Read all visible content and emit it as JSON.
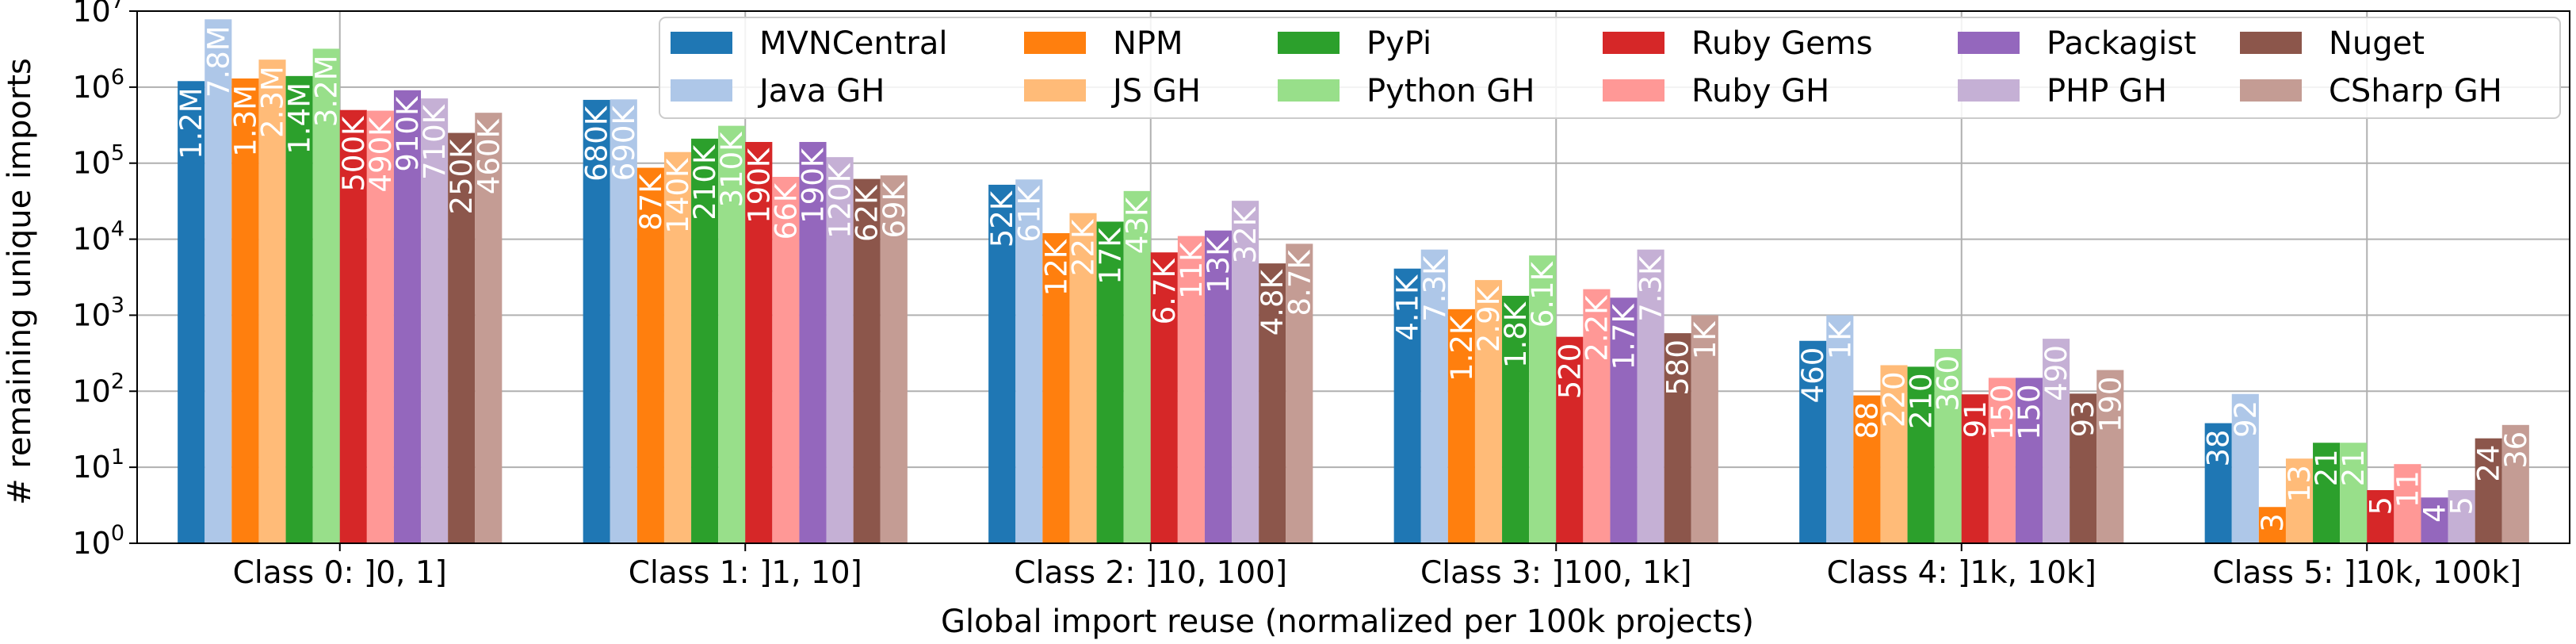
{
  "chart_data": {
    "type": "bar",
    "xlabel": "Global  import reuse (normalized per 100k projects)",
    "ylabel": "# remaining unique imports",
    "yscale": "log",
    "ylim": [
      1,
      10000000
    ],
    "yticks": [
      {
        "base": "10",
        "exp": "0",
        "value": 1
      },
      {
        "base": "10",
        "exp": "1",
        "value": 10
      },
      {
        "base": "10",
        "exp": "2",
        "value": 100
      },
      {
        "base": "10",
        "exp": "3",
        "value": 1000
      },
      {
        "base": "10",
        "exp": "4",
        "value": 10000
      },
      {
        "base": "10",
        "exp": "5",
        "value": 100000
      },
      {
        "base": "10",
        "exp": "6",
        "value": 1000000
      },
      {
        "base": "10",
        "exp": "7",
        "value": 10000000
      }
    ],
    "grid": true,
    "legend_position": "top-right",
    "categories": [
      "Class 0: ]0, 1]",
      "Class 1: ]1, 10]",
      "Class 2: ]10, 100]",
      "Class 3: ]100, 1k]",
      "Class 4: ]1k, 10k]",
      "Class 5: ]10k, 100k]"
    ],
    "series": [
      {
        "name": "MVNCentral",
        "color": "#1f77b4",
        "values": [
          1200000,
          680000,
          52000,
          4100,
          460,
          38
        ],
        "labels": [
          "1.2M",
          "680K",
          "52K",
          "4.1K",
          "460",
          "38"
        ]
      },
      {
        "name": "Java GH",
        "color": "#aec7e8",
        "values": [
          7800000,
          690000,
          61000,
          7300,
          1000,
          92
        ],
        "labels": [
          "7.8M",
          "690K",
          "61K",
          "7.3K",
          "1K",
          "92"
        ]
      },
      {
        "name": "NPM",
        "color": "#ff7f0e",
        "values": [
          1300000,
          87000,
          12000,
          1200,
          88,
          3
        ],
        "labels": [
          "1.3M",
          "87K",
          "12K",
          "1.2K",
          "88",
          "3"
        ]
      },
      {
        "name": "JS GH",
        "color": "#ffbb78",
        "values": [
          2300000,
          140000,
          22000,
          2900,
          220,
          13
        ],
        "labels": [
          "2.3M",
          "140K",
          "22K",
          "2.9K",
          "220",
          "13"
        ]
      },
      {
        "name": "PyPi",
        "color": "#2ca02c",
        "values": [
          1400000,
          210000,
          17000,
          1800,
          210,
          21
        ],
        "labels": [
          "1.4M",
          "210K",
          "17K",
          "1.8K",
          "210",
          "21"
        ]
      },
      {
        "name": "Python GH",
        "color": "#98df8a",
        "values": [
          3200000,
          310000,
          43000,
          6100,
          360,
          21
        ],
        "labels": [
          "3.2M",
          "310K",
          "43K",
          "6.1K",
          "360",
          "21"
        ]
      },
      {
        "name": "Ruby Gems",
        "color": "#d62728",
        "values": [
          500000,
          190000,
          6700,
          520,
          91,
          5
        ],
        "labels": [
          "500K",
          "190K",
          "6.7K",
          "520",
          "91",
          "5"
        ]
      },
      {
        "name": "Ruby GH",
        "color": "#ff9896",
        "values": [
          490000,
          66000,
          11000,
          2200,
          150,
          11
        ],
        "labels": [
          "490K",
          "66K",
          "11K",
          "2.2K",
          "150",
          "11"
        ]
      },
      {
        "name": "Packagist",
        "color": "#9467bd",
        "values": [
          910000,
          190000,
          13000,
          1700,
          150,
          4
        ],
        "labels": [
          "910K",
          "190K",
          "13K",
          "1.7K",
          "150",
          "4"
        ]
      },
      {
        "name": "PHP GH",
        "color": "#c5b0d5",
        "values": [
          710000,
          120000,
          32000,
          7300,
          490,
          5
        ],
        "labels": [
          "710K",
          "120K",
          "32K",
          "7.3K",
          "490",
          "5"
        ]
      },
      {
        "name": "Nuget",
        "color": "#8c564b",
        "values": [
          250000,
          62000,
          4800,
          580,
          93,
          24
        ],
        "labels": [
          "250K",
          "62K",
          "4.8K",
          "580",
          "93",
          "24"
        ]
      },
      {
        "name": "CSharp GH",
        "color": "#c49c94",
        "values": [
          460000,
          69000,
          8700,
          1000,
          190,
          36
        ],
        "labels": [
          "460K",
          "69K",
          "8.7K",
          "1K",
          "190",
          "36"
        ]
      }
    ]
  }
}
